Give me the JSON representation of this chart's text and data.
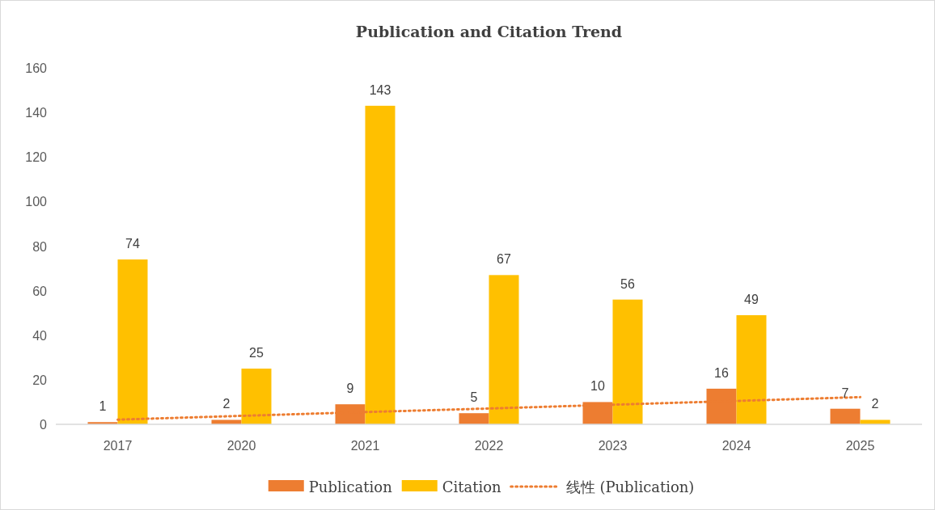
{
  "chart_data": {
    "type": "bar",
    "title": "Publication and Citation Trend",
    "categories": [
      "2017",
      "2020",
      "2021",
      "2022",
      "2023",
      "2024",
      "2025"
    ],
    "series": [
      {
        "name": "Publication",
        "color": "#ed7d31",
        "values": [
          1,
          2,
          9,
          5,
          10,
          16,
          7
        ],
        "data_labels": true
      },
      {
        "name": "Citation",
        "color": "#ffc000",
        "values": [
          74,
          25,
          143,
          67,
          56,
          49,
          2
        ],
        "data_labels": true
      },
      {
        "name": "线性 (Publication)",
        "type": "line",
        "color": "#ed7d31",
        "line_style": "dotted",
        "marker": "none",
        "values": [
          2.1,
          3.8,
          5.5,
          7.1,
          8.8,
          10.5,
          12.2
        ]
      }
    ],
    "ylim": [
      0,
      160
    ],
    "yticks": [
      0,
      20,
      40,
      60,
      80,
      100,
      120,
      140,
      160
    ],
    "grid": false,
    "legend": "bottom"
  }
}
